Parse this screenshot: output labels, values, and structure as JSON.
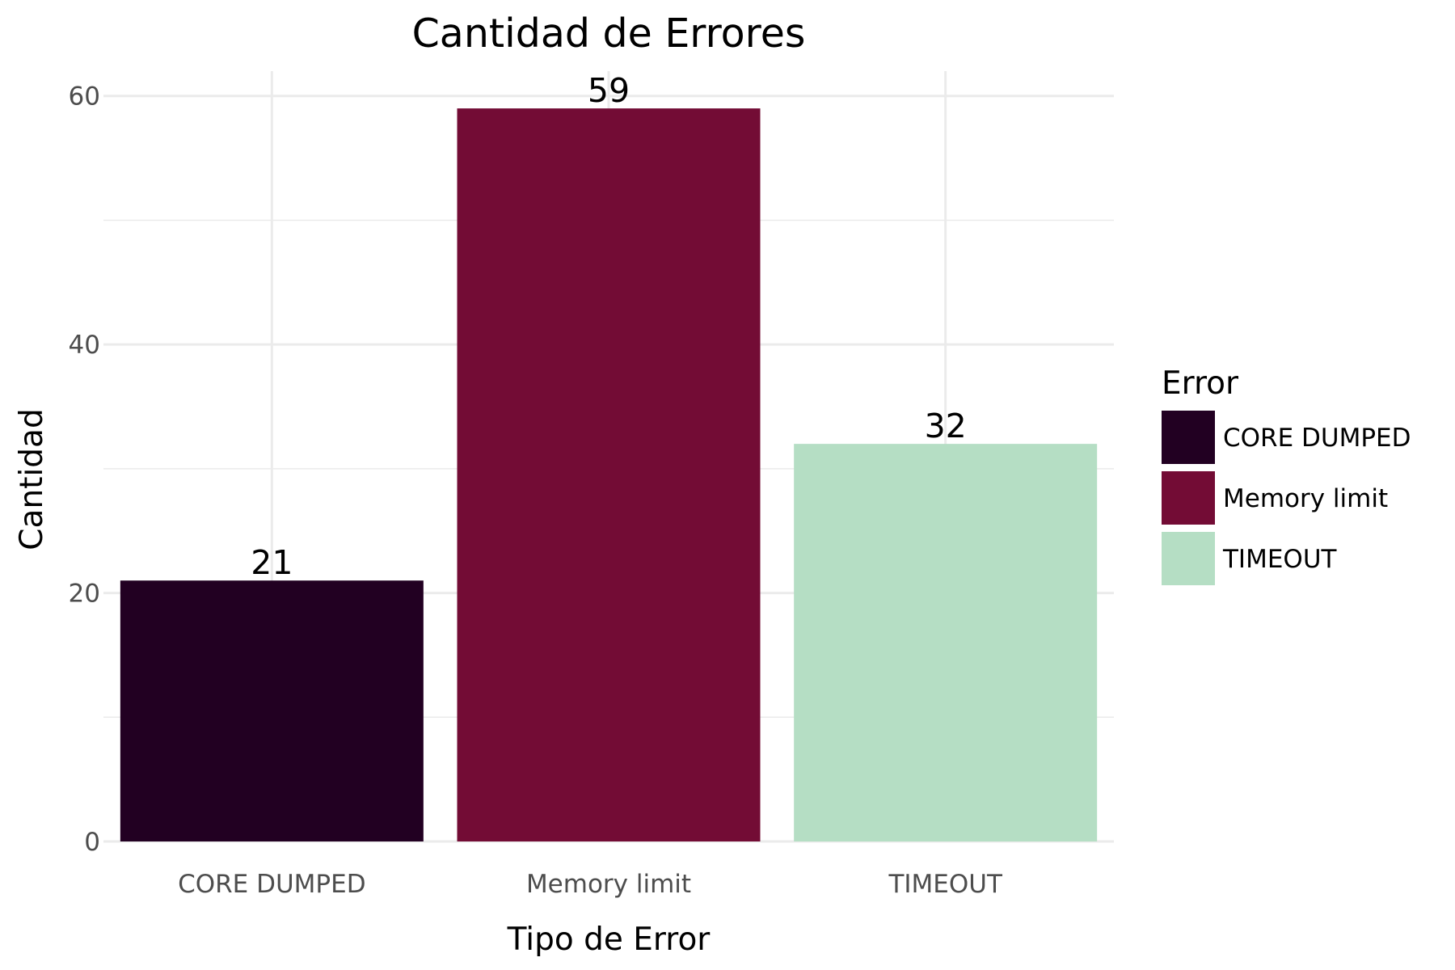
{
  "chart_data": {
    "type": "bar",
    "title": "Cantidad de Errores",
    "xlabel": "Tipo de Error",
    "ylabel": "Cantidad",
    "categories": [
      "CORE DUMPED",
      "Memory limit",
      "TIMEOUT"
    ],
    "values": [
      21,
      59,
      32
    ],
    "data_labels": [
      "21",
      "59",
      "32"
    ],
    "colors": [
      "#220022",
      "#730c35",
      "#b5dec4"
    ],
    "ylim": [
      0,
      62
    ],
    "yticks": [
      0,
      20,
      40,
      60
    ],
    "ytick_labels": [
      "0",
      "20",
      "40",
      "60"
    ],
    "grid": true,
    "legend": {
      "title": "Error",
      "placement": "right",
      "entries": [
        "CORE DUMPED",
        "Memory limit",
        "TIMEOUT"
      ]
    }
  }
}
